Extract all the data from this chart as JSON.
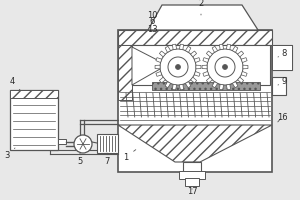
{
  "bg_color": "#e8e8e8",
  "line_color": "#555555",
  "label_color": "#2a2a2a",
  "fig_width": 3.0,
  "fig_height": 2.0,
  "dpi": 100
}
